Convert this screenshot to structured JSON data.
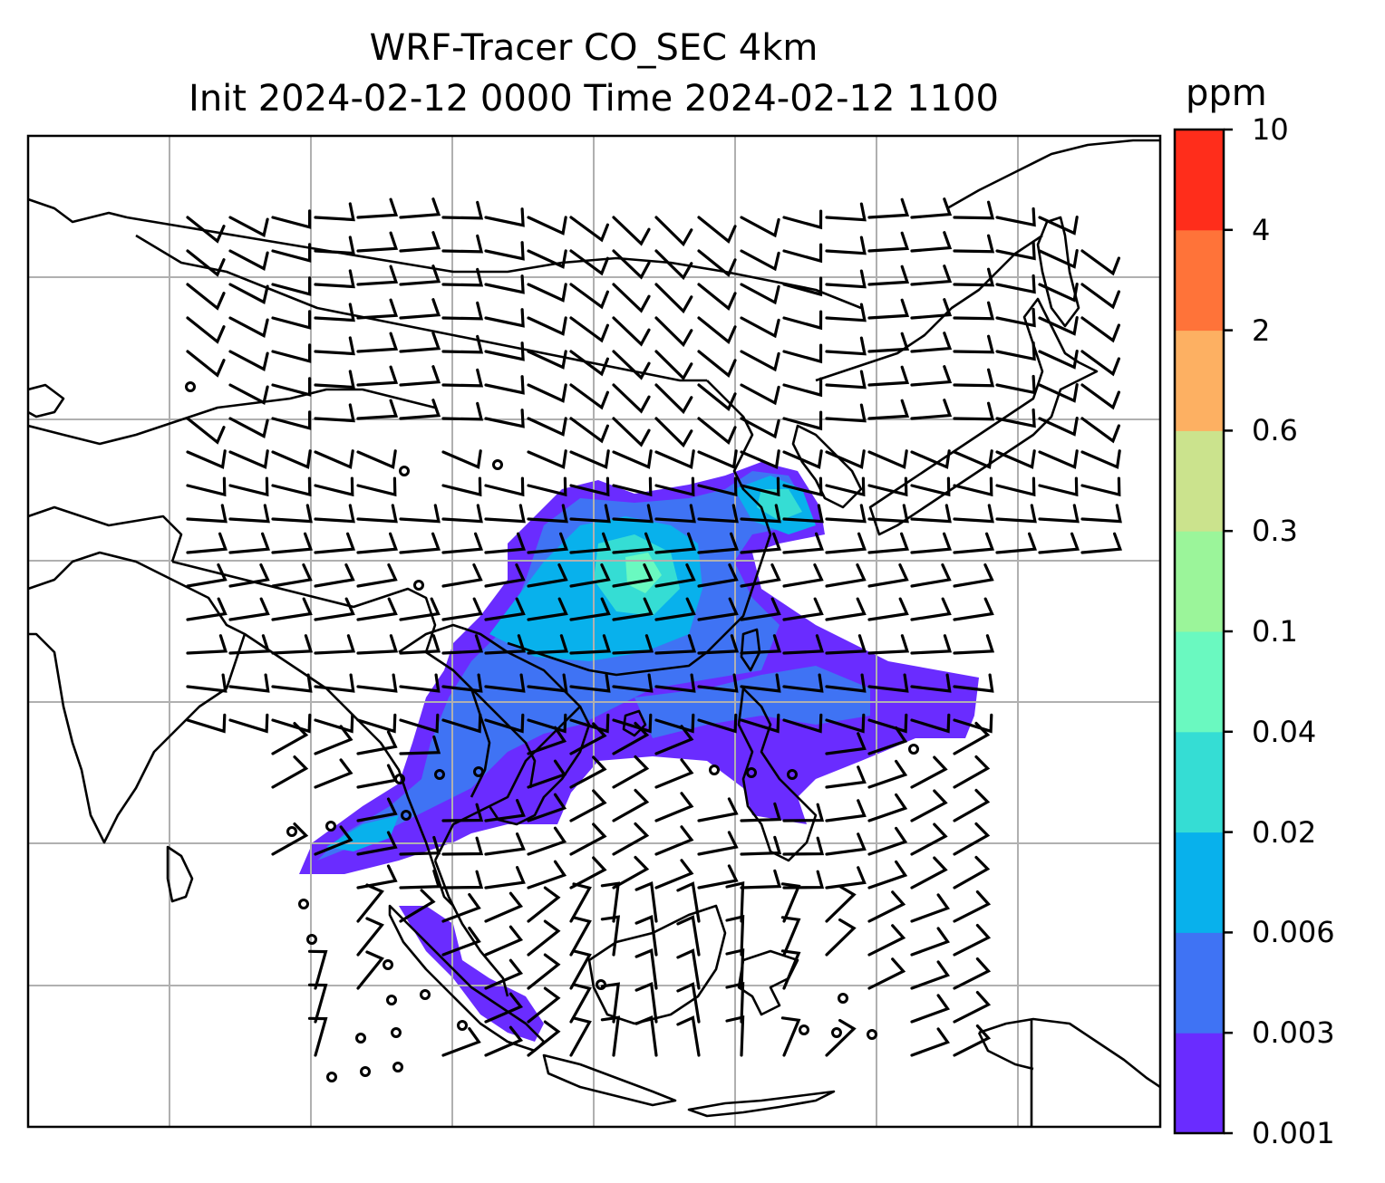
{
  "title": {
    "line1": "WRF-Tracer CO_SEC 4km",
    "line2": "Init 2024-02-12 0000 Time 2024-02-12 1100"
  },
  "colorbar": {
    "unit": "ppm",
    "ticks": [
      "0.001",
      "0.003",
      "0.006",
      "0.02",
      "0.04",
      "0.1",
      "0.3",
      "0.6",
      "2",
      "4",
      "10"
    ],
    "colors": [
      "#6a2cff",
      "#3f73f4",
      "#08b1ec",
      "#35ddd4",
      "#6af9c0",
      "#9bf59a",
      "#cbe38d",
      "#fdb062",
      "#ff7339",
      "#ff2d1b"
    ]
  },
  "map": {
    "projection_grid": true,
    "plume_levels": [
      "0.001",
      "0.003",
      "0.006",
      "0.02",
      "0.04"
    ],
    "wind_barbs": true,
    "calm_markers": true
  }
}
